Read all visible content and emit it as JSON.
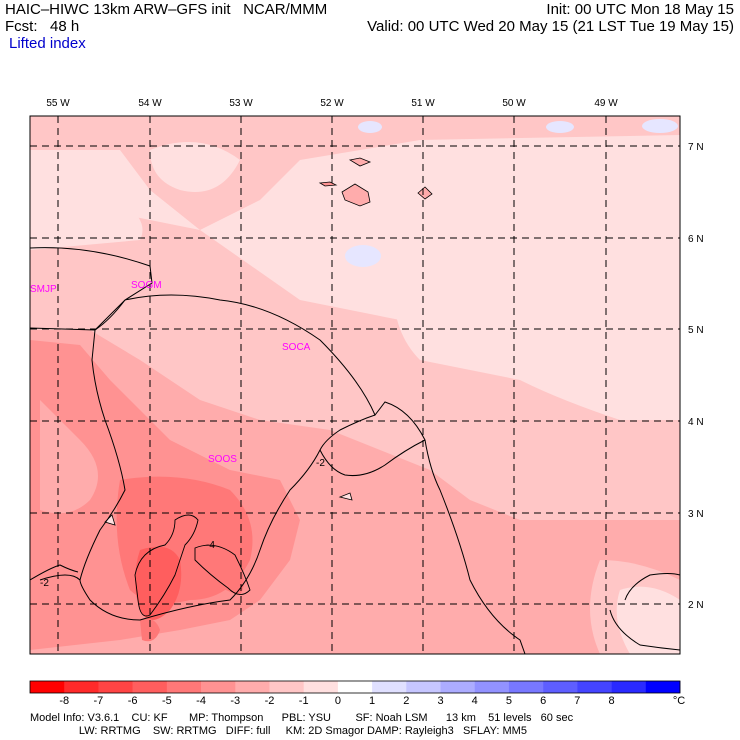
{
  "header": {
    "line1_left": "HAIC–HIWC 13km ARW–GFS init   NCAR/MMM",
    "line2_left": "Fcst:   48 h",
    "line3_left": "Lifted index",
    "line1_right": "Init: 00 UTC Mon 18 May 15",
    "line2_right": "Valid: 00 UTC Wed 20 May 15 (21 LST Tue 19 May 15)"
  },
  "map": {
    "lon_labels": [
      "55 W",
      "54 W",
      "53 W",
      "52 W",
      "51 W",
      "50 W",
      "49 W"
    ],
    "lat_labels": [
      "7 N",
      "6 N",
      "5 N",
      "4 N",
      "3 N",
      "2 N"
    ],
    "stations": [
      "SMJP",
      "SOGM",
      "SOCA",
      "SOOS"
    ],
    "contour_labels": [
      "-2",
      "-4",
      "-2"
    ]
  },
  "colorbar": {
    "levels": [
      "-8",
      "-7",
      "-6",
      "-5",
      "-4",
      "-3",
      "-2",
      "-1",
      "0",
      "1",
      "2",
      "3",
      "4",
      "5",
      "6",
      "7",
      "8"
    ],
    "unit": "°C",
    "colors": [
      "#ff0000",
      "#ff2a2a",
      "#ff4444",
      "#ff5e5e",
      "#ff7878",
      "#ff9292",
      "#ffacac",
      "#ffc6c6",
      "#ffe0e0",
      "#ffffff",
      "#e0e0ff",
      "#c6c6ff",
      "#acacff",
      "#9292ff",
      "#7878ff",
      "#5e5eff",
      "#4444ff",
      "#2a2aff",
      "#0000ff"
    ]
  },
  "footer": {
    "line1": "Model Info: V3.6.1    CU: KF       MP: Thompson      PBL: YSU        SF: Noah LSM      13 km    51 levels   60 sec",
    "line2": "                LW: RRTMG    SW: RRTMG   DIFF: full     KM: 2D Smagor DAMP: Rayleigh3   SFLAY: MM5"
  }
}
